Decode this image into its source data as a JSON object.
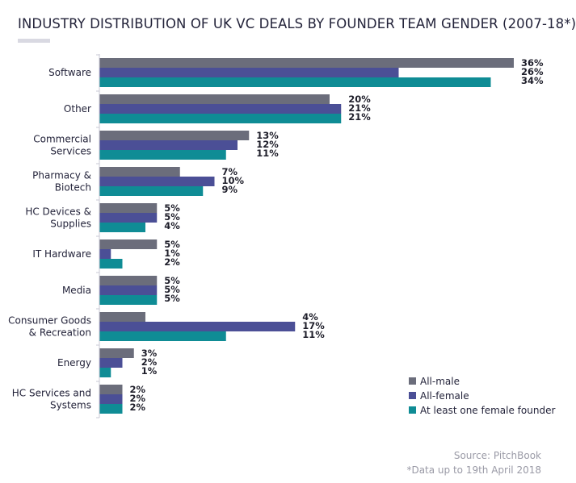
{
  "chart_data": {
    "type": "bar",
    "orientation": "horizontal",
    "title": "INDUSTRY DISTRIBUTION OF UK VC DEALS BY FOUNDER TEAM GENDER (2007-18*)",
    "categories": [
      [
        "Software"
      ],
      [
        "Other"
      ],
      [
        "Commercial",
        "Services"
      ],
      [
        "Pharmacy &",
        "Biotech"
      ],
      [
        "HC Devices &",
        "Supplies"
      ],
      [
        "IT Hardware"
      ],
      [
        "Media"
      ],
      [
        "Consumer Goods",
        "& Recreation"
      ],
      [
        "Energy"
      ],
      [
        "HC Services and",
        "Systems"
      ]
    ],
    "series": [
      {
        "name": "All-male",
        "color": "#6b6d7b",
        "values": [
          36,
          20,
          13,
          7,
          5,
          5,
          5,
          4,
          3,
          2
        ]
      },
      {
        "name": "All-female",
        "color": "#4b4f96",
        "values": [
          26,
          21,
          12,
          10,
          5,
          1,
          5,
          17,
          2,
          2
        ]
      },
      {
        "name": "At least one female founder",
        "color": "#0f8c95",
        "values": [
          34,
          21,
          11,
          9,
          4,
          2,
          5,
          11,
          1,
          2
        ]
      }
    ],
    "value_suffix": "%",
    "xlim": [
      0,
      36
    ],
    "grid": false,
    "legend_position": "bottom-right",
    "source": "Source: PitchBook",
    "note": "*Data up to 19th April 2018"
  }
}
